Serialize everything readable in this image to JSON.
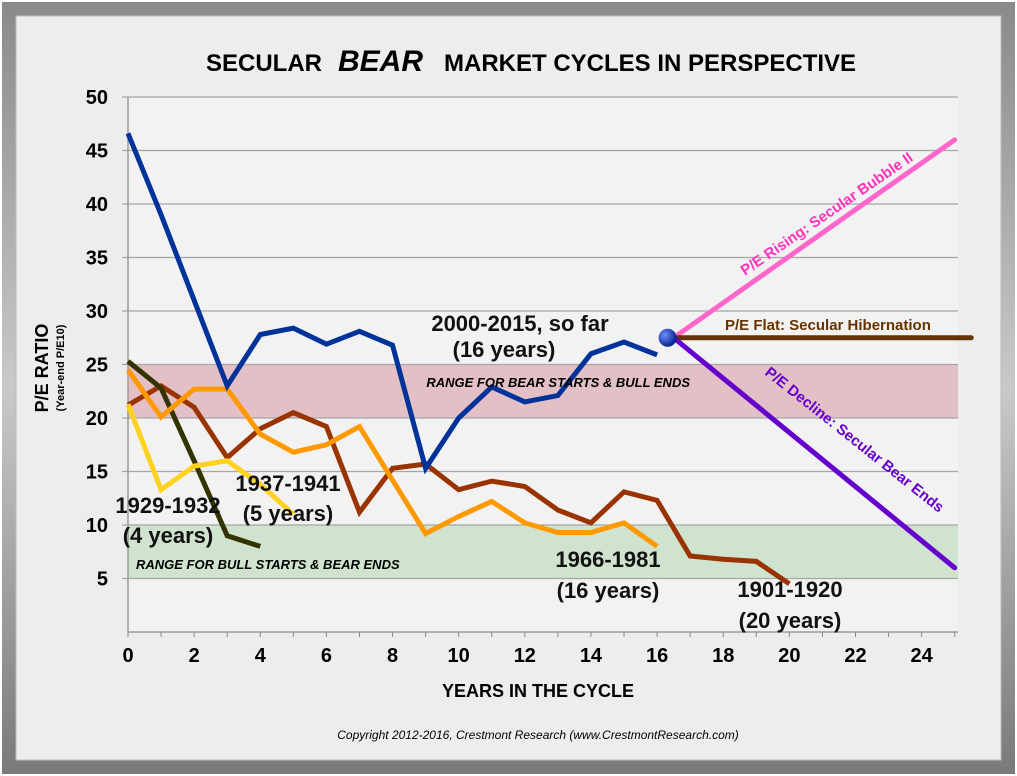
{
  "chart_data": {
    "type": "line",
    "title_parts": [
      "SECULAR",
      "BEAR",
      "MARKET CYCLES IN PERSPECTIVE"
    ],
    "xlabel": "YEARS IN THE CYCLE",
    "ylabel": "P/E RATIO",
    "ylabel_sub": "(Year-end P/E10)",
    "xlim": [
      0,
      25.1
    ],
    "ylim": [
      0,
      50
    ],
    "xticks": [
      "0",
      "2",
      "4",
      "6",
      "8",
      "10",
      "12",
      "14",
      "16",
      "18",
      "20",
      "22",
      "24"
    ],
    "yticks": [
      "5",
      "10",
      "15",
      "20",
      "25",
      "30",
      "35",
      "40",
      "45",
      "50"
    ],
    "grid": true,
    "bands": [
      {
        "name": "bear-range",
        "from": 20,
        "to": 25,
        "color": "#e3c0c6",
        "label": "RANGE FOR BEAR STARTS & BULL ENDS"
      },
      {
        "name": "bull-range",
        "from": 5,
        "to": 10,
        "color": "#cfe3cf",
        "label": "RANGE FOR BULL STARTS & BEAR ENDS"
      }
    ],
    "series": [
      {
        "name": "1901-1920",
        "label": [
          "1901-1920",
          "(20 years)"
        ],
        "color": "#993300",
        "values": [
          21.2,
          23,
          21,
          16.3,
          19,
          20.5,
          19.2,
          11.2,
          15.3,
          15.7,
          13.3,
          14.1,
          13.6,
          11.4,
          10.2,
          13.1,
          12.3,
          7.1,
          6.8,
          6.6,
          4.5
        ]
      },
      {
        "name": "1929-1932",
        "label": [
          "1929-1932",
          "(4 years)"
        ],
        "color": "#333300",
        "values": [
          25.3,
          22.8,
          16,
          9,
          8
        ]
      },
      {
        "name": "1937-1941",
        "label": [
          "1937-1941",
          "(5 years)"
        ],
        "color": "#ffd21f",
        "values": [
          21.3,
          13.3,
          15.5,
          16,
          13.8,
          11
        ]
      },
      {
        "name": "1966-1981",
        "label": [
          "1966-1981",
          "(16 years)"
        ],
        "color": "#ff9900",
        "values": [
          24.5,
          20.1,
          22.7,
          22.7,
          18.5,
          16.8,
          17.5,
          19.2,
          14.2,
          9.2,
          10.8,
          12.2,
          10.2,
          9.3,
          9.3,
          10.2,
          8
        ]
      },
      {
        "name": "2000-2015",
        "label": [
          "2000-2015, so far",
          "(16 years)"
        ],
        "color": "#003399",
        "values": [
          46.6,
          39,
          31,
          23,
          27.8,
          28.4,
          26.9,
          28.1,
          26.8,
          15.3,
          20,
          22.9,
          21.5,
          22.1,
          26,
          27.1,
          25.9
        ]
      }
    ],
    "projections": {
      "start": {
        "x": 16.5,
        "y": 27.5
      },
      "lines": [
        {
          "name": "rising",
          "label": "P/E Rising: Secular Bubble II",
          "color": "#ff66cc",
          "end": {
            "x": 25,
            "y": 46
          }
        },
        {
          "name": "flat",
          "label": "P/E Flat: Secular Hibernation",
          "color": "#663300",
          "end": {
            "x": 25.5,
            "y": 27.5
          }
        },
        {
          "name": "decline",
          "label": "P/E Decline: Secular Bear Ends",
          "color": "#6600cc",
          "end": {
            "x": 25,
            "y": 6
          }
        }
      ]
    },
    "copyright": "Copyright 2012-2016, Crestmont Research (www.CrestmontResearch.com)"
  }
}
